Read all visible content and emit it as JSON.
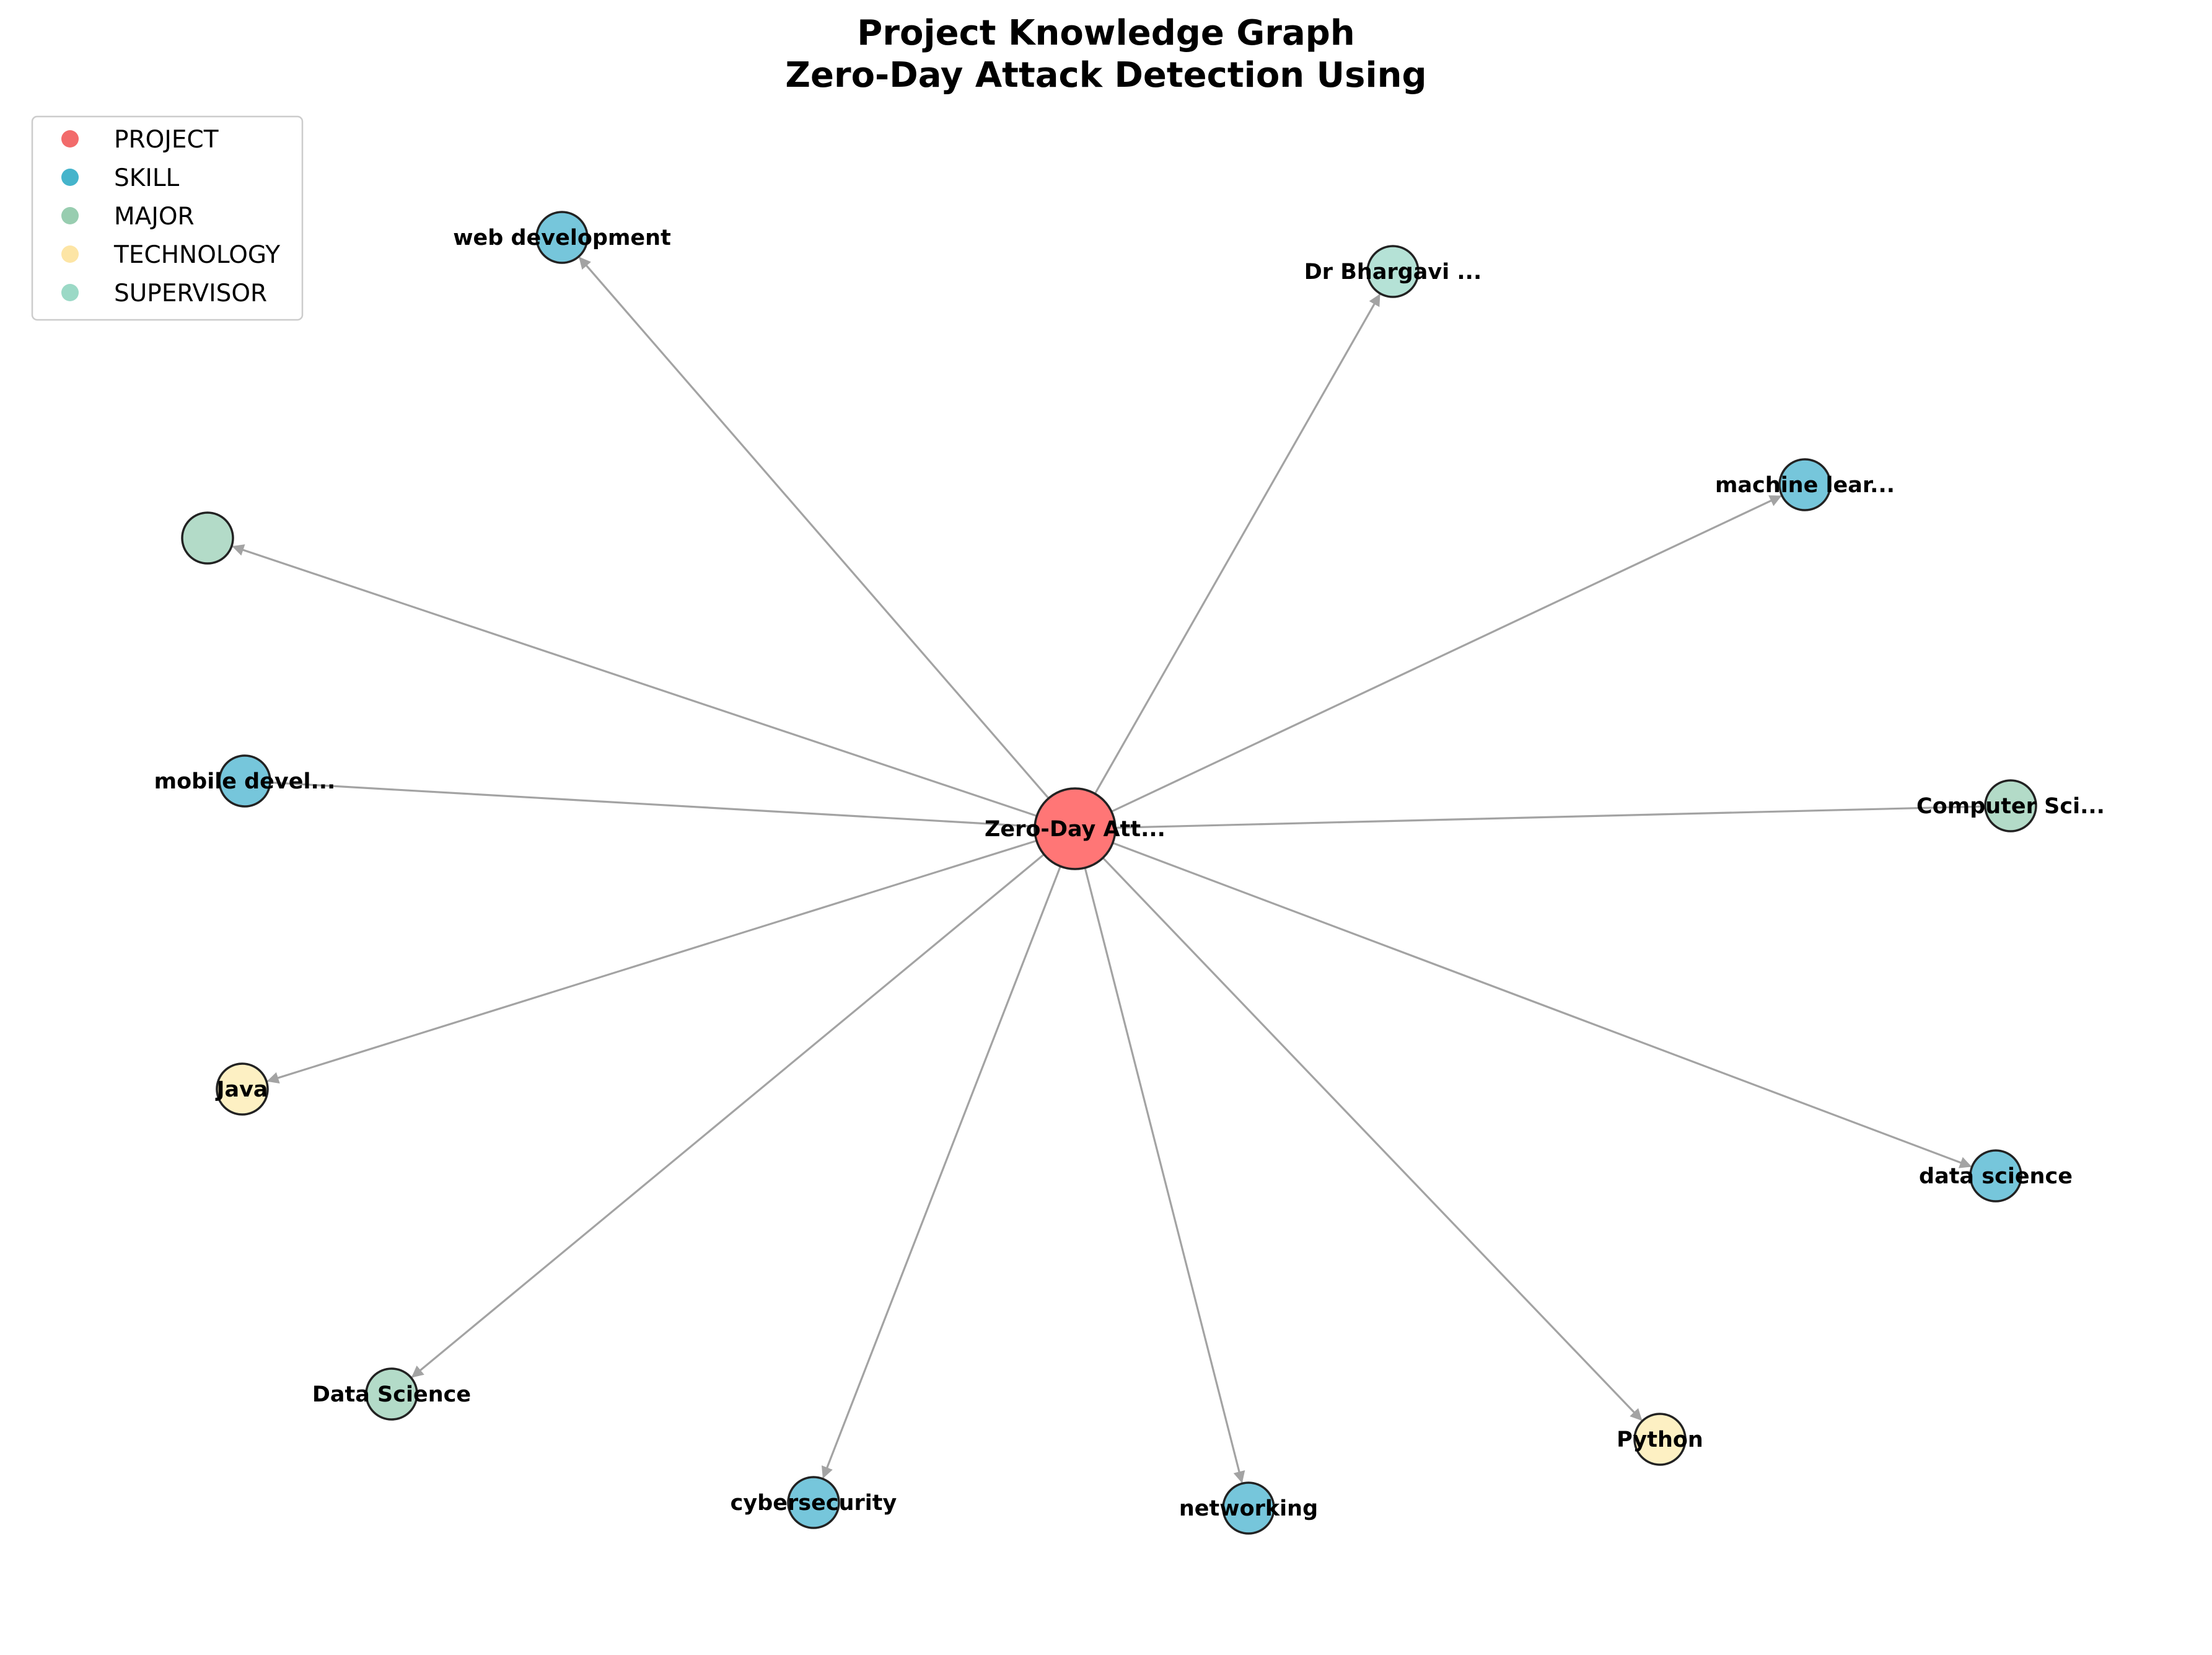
{
  "title": {
    "line1": "Project Knowledge Graph",
    "line2": "Zero-Day Attack Detection Using"
  },
  "legend": [
    {
      "label": "PROJECT",
      "color": "#f26b6b"
    },
    {
      "label": "SKILL",
      "color": "#45b4cb"
    },
    {
      "label": "MAJOR",
      "color": "#98cdb0"
    },
    {
      "label": "TECHNOLOGY",
      "color": "#fde5a5"
    },
    {
      "label": "SUPERVISOR",
      "color": "#9bd9c6"
    }
  ],
  "center": {
    "label": "Zero-Day Att...",
    "type": "PROJECT",
    "fill": "#ff7676"
  },
  "nodes": [
    {
      "label": "web development",
      "type": "SKILL",
      "fill": "#76c6db"
    },
    {
      "label": "Dr Bhargavi ...",
      "type": "SUPERVISOR",
      "fill": "#b5e2d6"
    },
    {
      "label": "machine lear...",
      "type": "SKILL",
      "fill": "#76c6db"
    },
    {
      "label": "",
      "type": "MAJOR",
      "fill": "#b3dbc8"
    },
    {
      "label": "mobile devel...",
      "type": "SKILL",
      "fill": "#76c6db"
    },
    {
      "label": "Computer Sci...",
      "type": "MAJOR",
      "fill": "#b3dbc8"
    },
    {
      "label": "Java",
      "type": "TECHNOLOGY",
      "fill": "#fdf0c3"
    },
    {
      "label": "data science",
      "type": "SKILL",
      "fill": "#76c6db"
    },
    {
      "label": "Data Science",
      "type": "MAJOR",
      "fill": "#b3dbc8"
    },
    {
      "label": "Python",
      "type": "TECHNOLOGY",
      "fill": "#fdf0c3"
    },
    {
      "label": "cybersecurity",
      "type": "SKILL",
      "fill": "#76c6db"
    },
    {
      "label": "networking",
      "type": "SKILL",
      "fill": "#76c6db"
    }
  ]
}
